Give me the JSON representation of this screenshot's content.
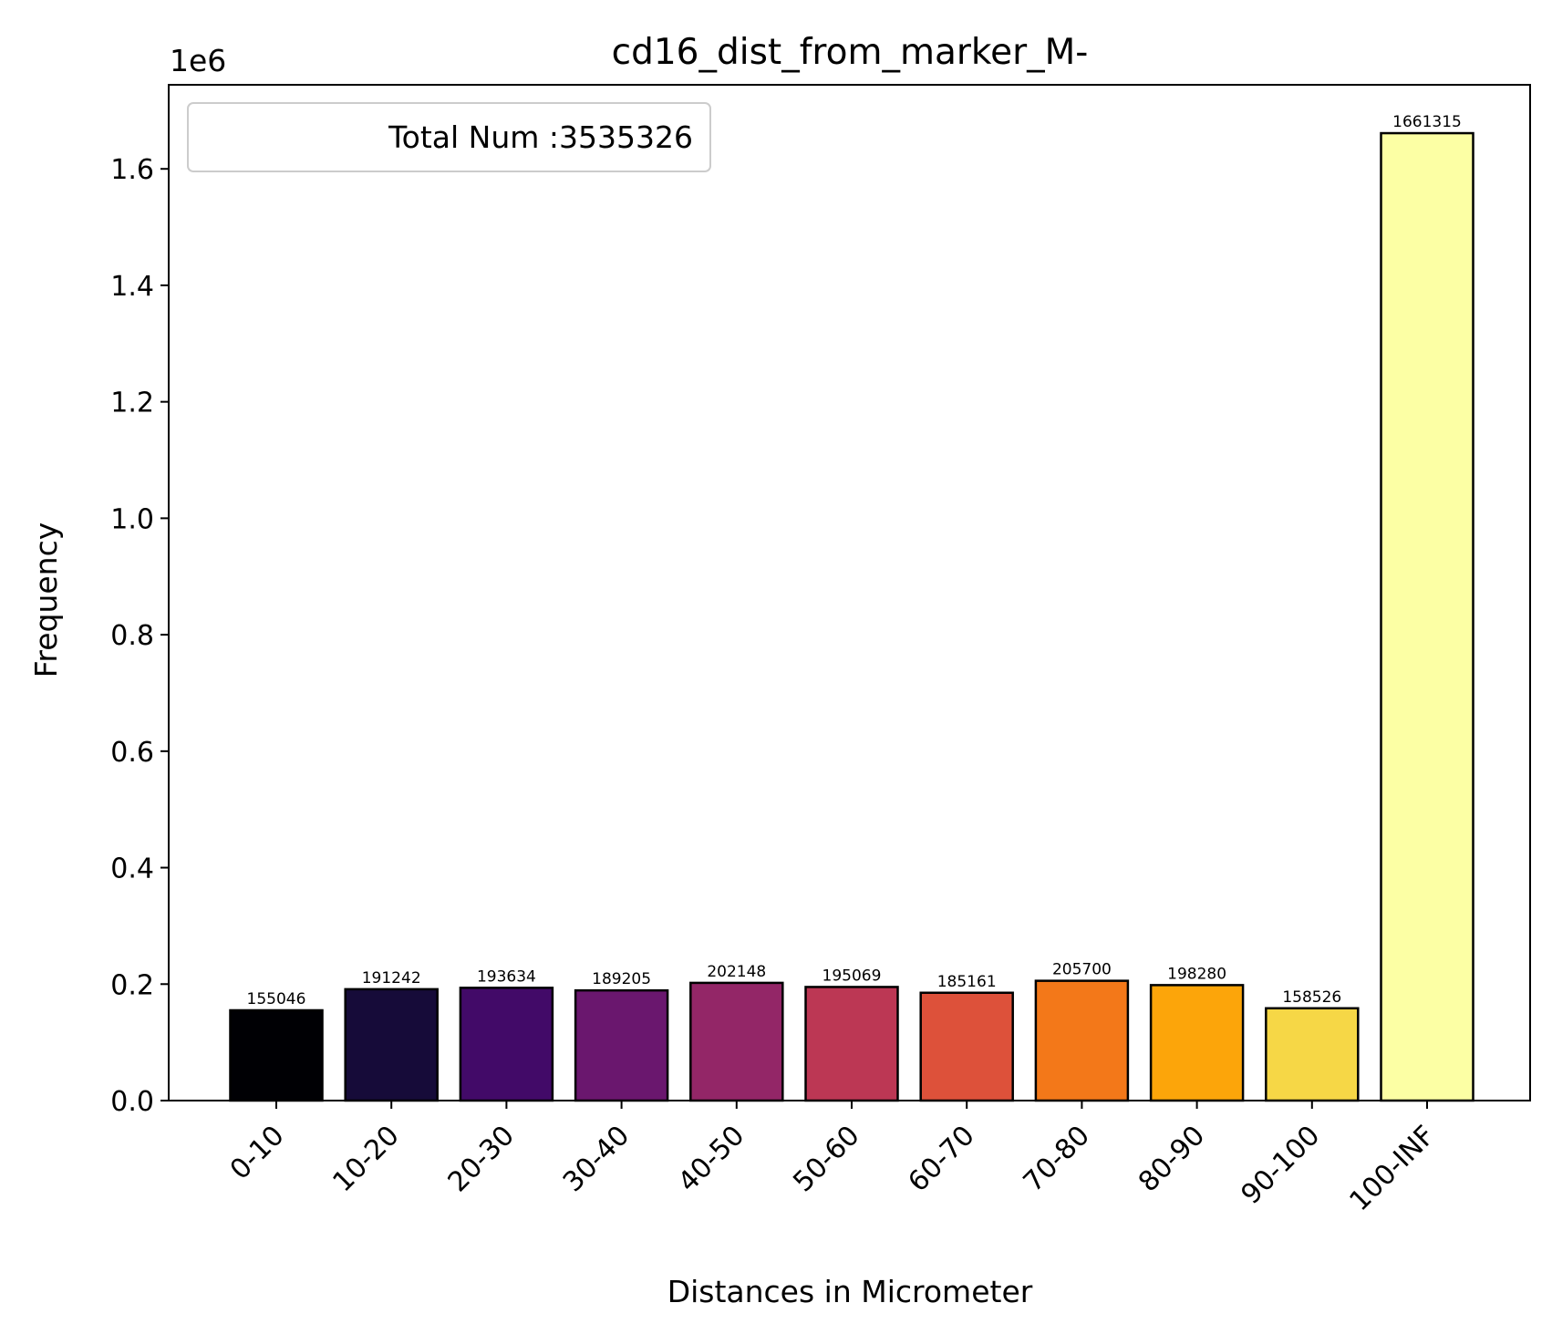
{
  "chart_data": {
    "type": "bar",
    "title": "cd16_dist_from_marker_M-",
    "xlabel": "Distances in Micrometer",
    "ylabel": "Frequency",
    "y_scale_label": "1e6",
    "categories": [
      "0-10",
      "10-20",
      "20-30",
      "30-40",
      "40-50",
      "50-60",
      "60-70",
      "70-80",
      "80-90",
      "90-100",
      "100-INF"
    ],
    "values": [
      155046,
      191242,
      193634,
      189205,
      202148,
      195069,
      185161,
      205700,
      198280,
      158526,
      1661315
    ],
    "value_labels": [
      "155046",
      "191242",
      "193634",
      "189205",
      "202148",
      "195069",
      "185161",
      "205700",
      "198280",
      "158526",
      "1661315"
    ],
    "colors": [
      "#000004",
      "#160b39",
      "#420a68",
      "#6a176e",
      "#932667",
      "#bc3754",
      "#dd513a",
      "#f37819",
      "#fca50a",
      "#f6d746",
      "#fcffa4"
    ],
    "ylim": [
      0,
      1744381
    ],
    "yticks": [
      0,
      200000,
      400000,
      600000,
      800000,
      1000000,
      1200000,
      1400000,
      1600000
    ],
    "ytick_labels": [
      "0.0",
      "0.2",
      "0.4",
      "0.6",
      "0.8",
      "1.0",
      "1.2",
      "1.4",
      "1.6"
    ],
    "legend": {
      "text": "Total Num :3535326",
      "placement": "top-left"
    },
    "grid": false
  }
}
